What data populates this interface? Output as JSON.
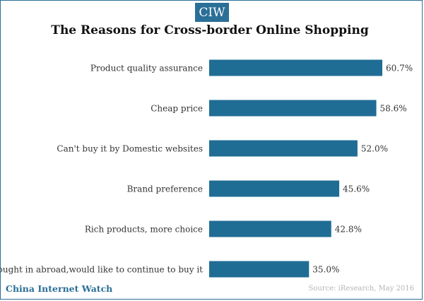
{
  "header": {
    "logo_text": "CIW",
    "title": "The Reasons for Cross-border Online Shopping"
  },
  "footer": {
    "brand": "China Internet Watch",
    "source": "Source: iResearch, May 2016"
  },
  "colors": {
    "bar": "#1f6d94",
    "accent": "#2a6f97"
  },
  "chart_data": {
    "type": "bar",
    "orientation": "horizontal",
    "categories": [
      "Product quality assurance",
      "Cheap price",
      "Can't buy it by Domestic websites",
      "Brand preference",
      "Rich products, more choice",
      "Bought in abroad,would like to continue to buy it"
    ],
    "values": [
      60.7,
      58.6,
      52.0,
      45.6,
      42.8,
      35.0
    ],
    "value_labels": [
      "60.7%",
      "58.6%",
      "52.0%",
      "45.6%",
      "42.8%",
      "35.0%"
    ],
    "title": "The Reasons for Cross-border Online Shopping",
    "xlabel": "",
    "ylabel": "",
    "xlim": [
      0,
      60.7
    ],
    "grid": false
  }
}
